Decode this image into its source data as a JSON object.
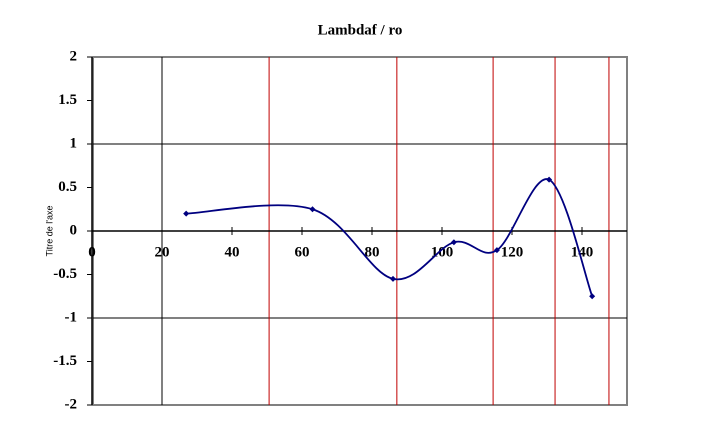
{
  "chart_data": {
    "type": "line",
    "title": "Lambdaf / ro",
    "y_label": "Titre de l'axe",
    "x": [
      26.9,
      63,
      86,
      103.4,
      115.7,
      130.6,
      142.9
    ],
    "values": [
      0.2,
      0.25,
      -0.55,
      -0.13,
      -0.22,
      0.59,
      -0.75
    ],
    "color": "#000080",
    "smooth": true,
    "xlim": [
      0,
      150
    ],
    "ylim": [
      -2,
      2
    ],
    "xticks": [
      0,
      20,
      40,
      60,
      80,
      100,
      120,
      140
    ],
    "yticks": [
      -2,
      -1.5,
      -1,
      -0.5,
      0,
      0.5,
      1,
      1.5,
      2
    ],
    "hgrid": [
      -1,
      1
    ],
    "vgrid": [
      20
    ],
    "grid_color": "#000000",
    "vertical_lines": [
      50.6,
      87.1,
      114.6,
      132.3,
      147.7
    ],
    "vertical_line_color": "#c00000"
  }
}
